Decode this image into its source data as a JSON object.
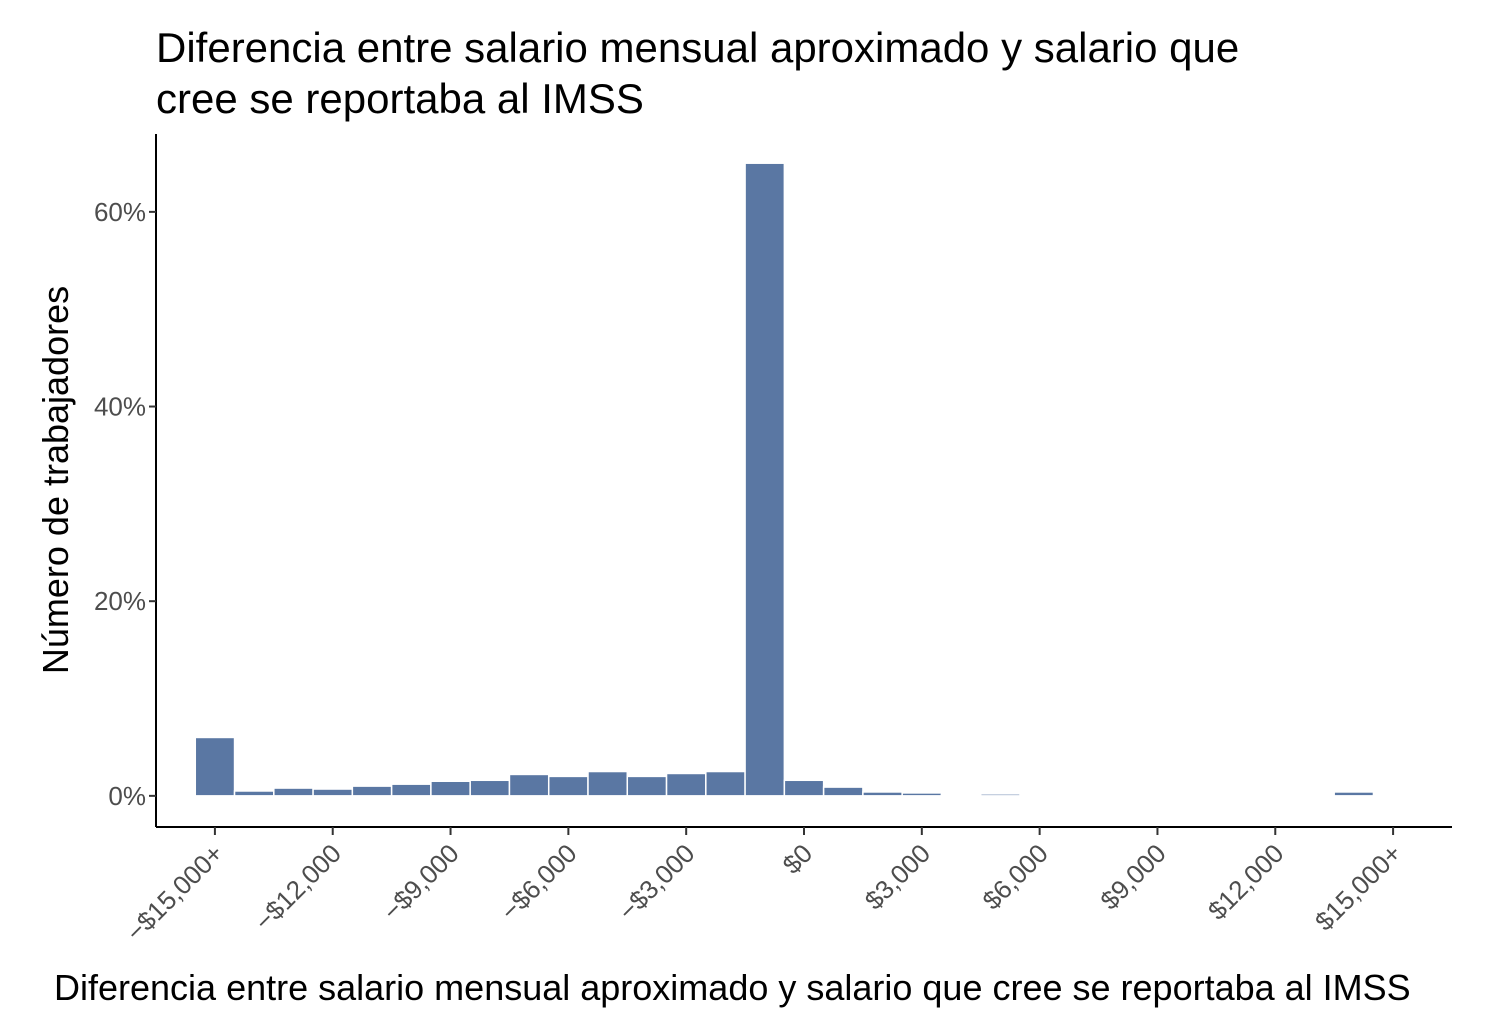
{
  "chart_data": {
    "type": "bar",
    "title": [
      "Diferencia entre salario mensual aproximado y salario que",
      "cree se reportaba al IMSS"
    ],
    "xlabel": "Diferencia entre salario mensual aproximado y salario que cree se reportaba al IMSS",
    "ylabel": "Número de trabajadores",
    "x_ticks": [
      {
        "value": -15000,
        "label": "−$15,000+"
      },
      {
        "value": -12000,
        "label": "−$12,000"
      },
      {
        "value": -9000,
        "label": "−$9,000"
      },
      {
        "value": -6000,
        "label": "−$6,000"
      },
      {
        "value": -3000,
        "label": "−$3,000"
      },
      {
        "value": 0,
        "label": "$0"
      },
      {
        "value": 3000,
        "label": "$3,000"
      },
      {
        "value": 6000,
        "label": "$6,000"
      },
      {
        "value": 9000,
        "label": "$9,000"
      },
      {
        "value": 12000,
        "label": "$12,000"
      },
      {
        "value": 15000,
        "label": "$15,000+"
      }
    ],
    "y_ticks": [
      {
        "value": 0,
        "label": "0%"
      },
      {
        "value": 20,
        "label": "20%"
      },
      {
        "value": 40,
        "label": "40%"
      },
      {
        "value": 60,
        "label": "60%"
      }
    ],
    "xlim": [
      -16500,
      16500
    ],
    "ylim": [
      -3.2,
      68
    ],
    "bin_width": 1000,
    "bin_centers": [
      -15000,
      -14000,
      -13000,
      -12000,
      -11000,
      -10000,
      -9000,
      -8000,
      -7000,
      -6000,
      -5000,
      -4000,
      -3000,
      -2000,
      -1000,
      0,
      1000,
      2000,
      3000,
      4000,
      5000,
      6000,
      7000,
      8000,
      9000,
      10000,
      11000,
      12000,
      13000,
      14000,
      15000
    ],
    "values": [
      6.0,
      0.5,
      0.8,
      0.7,
      1.0,
      1.2,
      1.5,
      1.6,
      2.2,
      2.0,
      2.5,
      2.0,
      2.3,
      2.5,
      65.0,
      1.6,
      0.9,
      0.4,
      0.3,
      0.1,
      0.2,
      0,
      0,
      0,
      0,
      0,
      0,
      0,
      0,
      0.4,
      0
    ],
    "bar_color": "#5a77a3",
    "grid": false,
    "legend": "none"
  }
}
